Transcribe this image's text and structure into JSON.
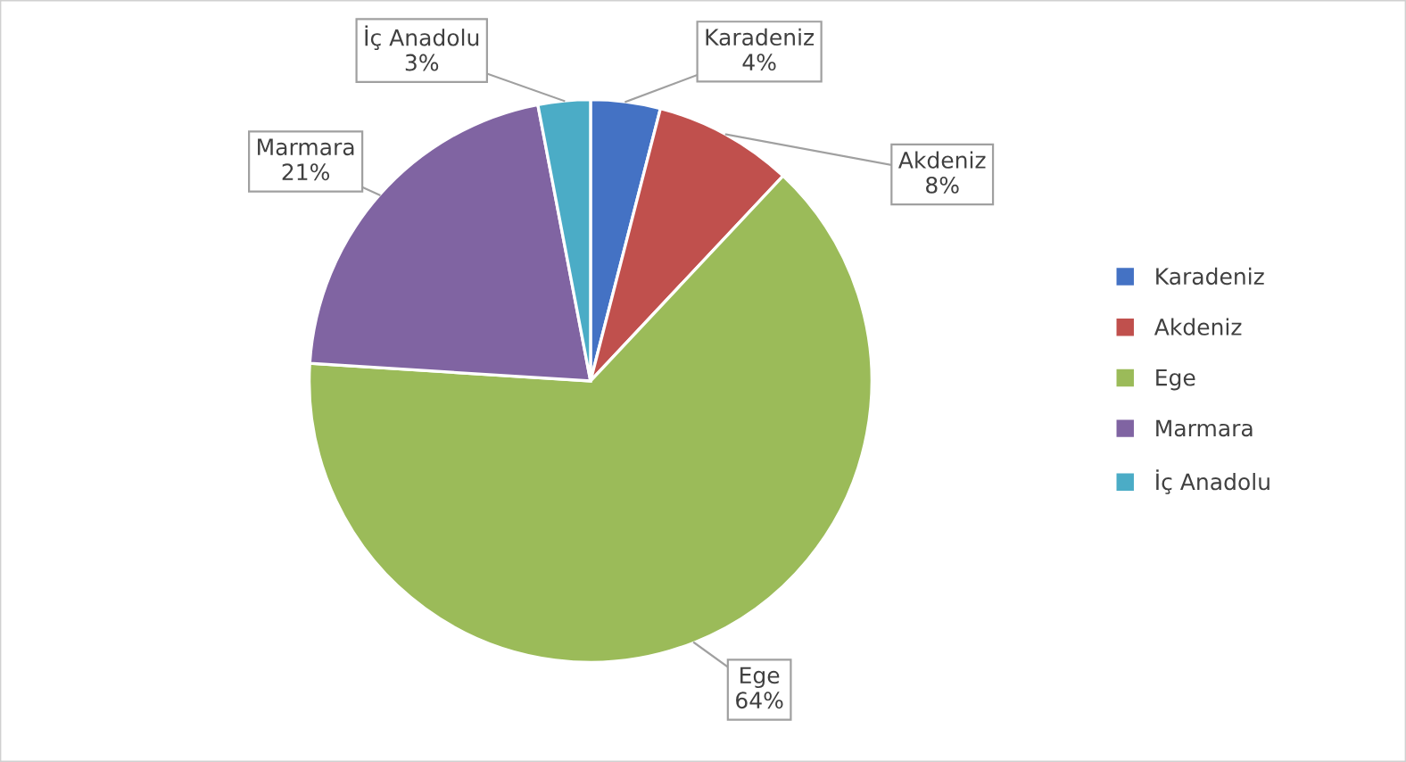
{
  "chart_data": {
    "type": "pie",
    "categories": [
      "Karadeniz",
      "Akdeniz",
      "Ege",
      "Marmara",
      "İç Anadolu"
    ],
    "values": [
      4,
      8,
      64,
      21,
      3
    ],
    "colors": [
      "#4472c4",
      "#c0504d",
      "#9bbb59",
      "#8064a2",
      "#4bacc6"
    ],
    "value_labels": [
      "4%",
      "8%",
      "64%",
      "21%",
      "3%"
    ],
    "legend": "right"
  }
}
